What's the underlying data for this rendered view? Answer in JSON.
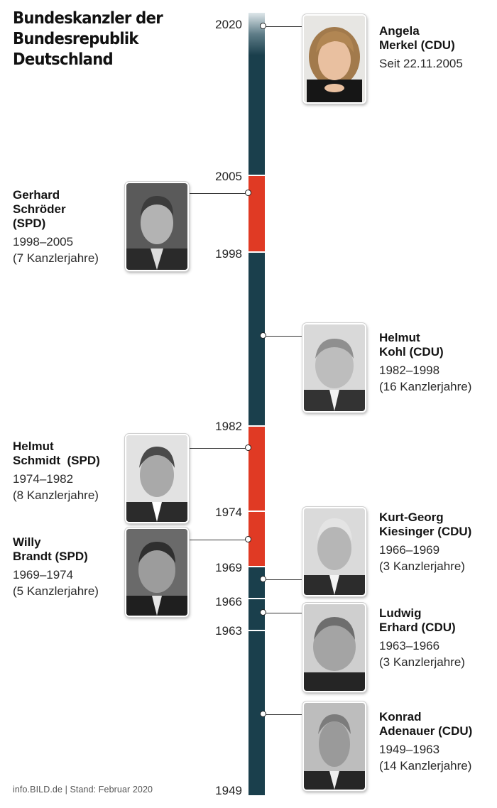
{
  "title_lines": [
    "Bundeskanzler der",
    "Bundesrepublik",
    "Deutschland"
  ],
  "years": [
    "2020",
    "2005",
    "1998",
    "1982",
    "1974",
    "1969",
    "1966",
    "1963",
    "1949"
  ],
  "colors": {
    "cdu": "#1a3f4c",
    "spd": "#e03a24"
  },
  "chancellors": {
    "merkel": {
      "name_lines": [
        "Angela",
        "Merkel (CDU)"
      ],
      "term_lines": [
        "Seit 22.11.2005"
      ],
      "party": "CDU"
    },
    "schroeder": {
      "name_lines": [
        "Gerhard",
        "Schröder",
        "(SPD)"
      ],
      "term_lines": [
        "1998–2005",
        "(7 Kanzlerjahre)"
      ],
      "party": "SPD"
    },
    "kohl": {
      "name_lines": [
        "Helmut",
        "Kohl (CDU)"
      ],
      "term_lines": [
        "1982–1998",
        "(16 Kanzlerjahre)"
      ],
      "party": "CDU"
    },
    "schmidt": {
      "name_lines": [
        "Helmut",
        "Schmidt  (SPD)"
      ],
      "term_lines": [
        "1974–1982",
        "(8 Kanzlerjahre)"
      ],
      "party": "SPD"
    },
    "brandt": {
      "name_lines": [
        "Willy",
        "Brandt (SPD)"
      ],
      "term_lines": [
        "1969–1974",
        "(5 Kanzlerjahre)"
      ],
      "party": "SPD"
    },
    "kiesinger": {
      "name_lines": [
        "Kurt-Georg",
        "Kiesinger (CDU)"
      ],
      "term_lines": [
        "1966–1969",
        "(3 Kanzlerjahre)"
      ],
      "party": "CDU"
    },
    "erhard": {
      "name_lines": [
        "Ludwig",
        "Erhard (CDU)"
      ],
      "term_lines": [
        "1963–1966",
        "(3 Kanzlerjahre)"
      ],
      "party": "CDU"
    },
    "adenauer": {
      "name_lines": [
        "Konrad",
        "Adenauer (CDU)"
      ],
      "term_lines": [
        "1949–1963",
        "(14 Kanzlerjahre)"
      ],
      "party": "CDU"
    }
  },
  "footer": "info.BILD.de | Stand: Februar 2020"
}
